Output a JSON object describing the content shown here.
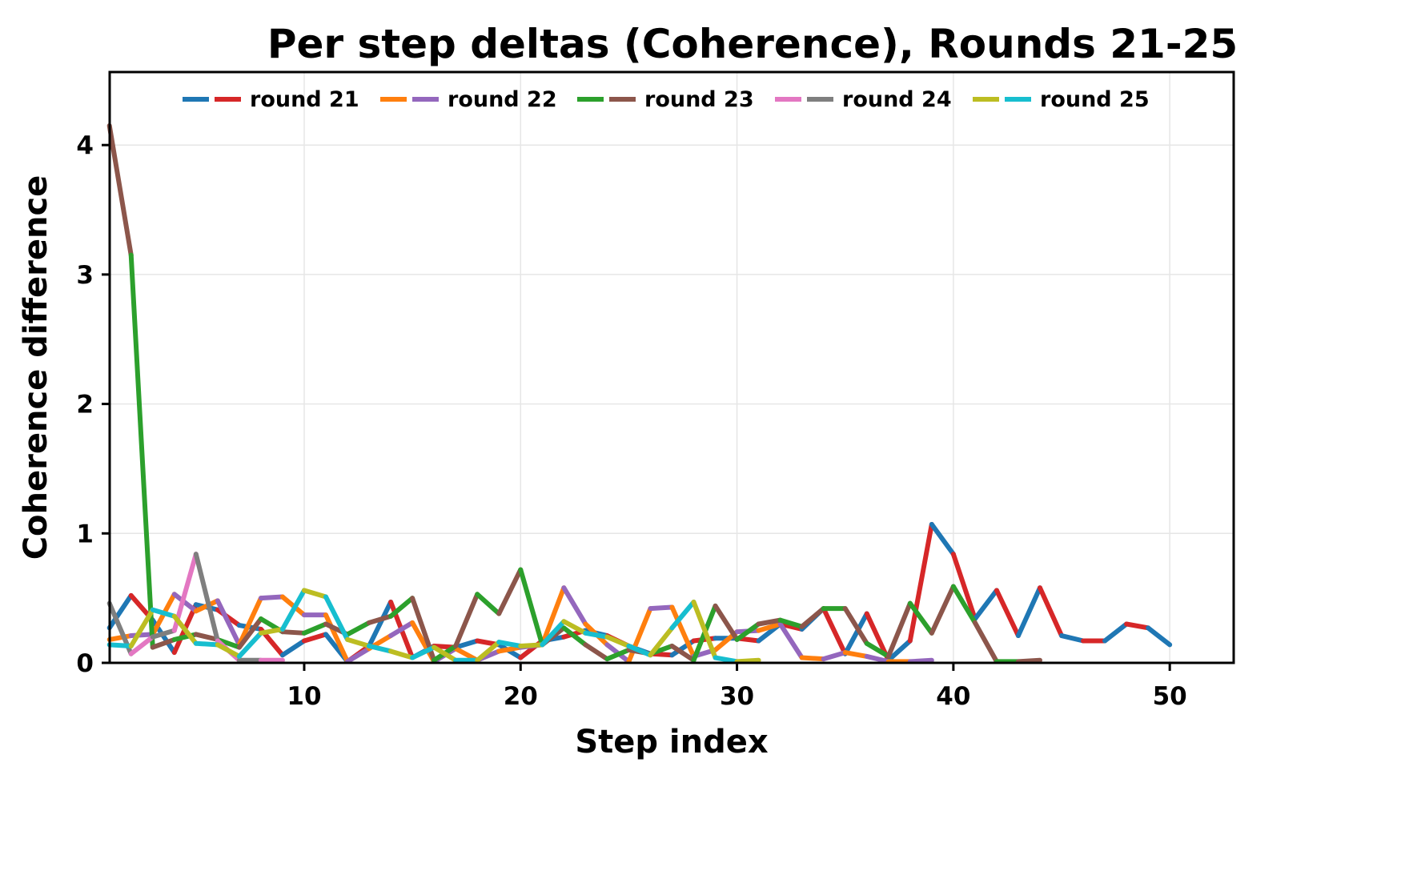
{
  "chart_data": {
    "type": "line",
    "title": "Per step deltas (Coherence), Rounds 21-25",
    "xlabel": "Step index",
    "ylabel": "Coherence difference",
    "xlim": [
      1,
      53
    ],
    "ylim": [
      0,
      4.55
    ],
    "xticks": [
      10,
      20,
      30,
      40,
      50
    ],
    "yticks": [
      0,
      1,
      2,
      3,
      4
    ],
    "grid": true,
    "legend_position": "upper center (horizontal, inside plot)",
    "line_style_note": "Each series is drawn with two alternating segment colors",
    "series": [
      {
        "name": "round 21",
        "colors": [
          "#1f77b4",
          "#d62728"
        ],
        "x": [
          1,
          2,
          3,
          4,
          5,
          6,
          7,
          8,
          9,
          10,
          11,
          12,
          13,
          14,
          15,
          16,
          17,
          18,
          19,
          20,
          21,
          22,
          23,
          24,
          25,
          26,
          27,
          28,
          29,
          30,
          31,
          32,
          33,
          34,
          35,
          36,
          37,
          38,
          39,
          40,
          41,
          42,
          43,
          44,
          45,
          46,
          47,
          48,
          49,
          50
        ],
        "values": [
          0.27,
          0.52,
          0.33,
          0.08,
          0.45,
          0.41,
          0.29,
          0.26,
          0.06,
          0.17,
          0.22,
          0.01,
          0.13,
          0.47,
          0.04,
          0.13,
          0.12,
          0.17,
          0.14,
          0.04,
          0.17,
          0.2,
          0.25,
          0.21,
          0.13,
          0.07,
          0.06,
          0.17,
          0.19,
          0.19,
          0.17,
          0.3,
          0.26,
          0.42,
          0.07,
          0.38,
          0.02,
          0.17,
          1.07,
          0.84,
          0.34,
          0.56,
          0.21,
          0.58,
          0.21,
          0.17,
          0.17,
          0.3,
          0.27,
          0.14
        ]
      },
      {
        "name": "round 22",
        "colors": [
          "#ff7f0e",
          "#9467bd"
        ],
        "x": [
          1,
          2,
          3,
          4,
          5,
          6,
          7,
          8,
          9,
          10,
          11,
          12,
          13,
          14,
          15,
          16,
          17,
          18,
          19,
          20,
          21,
          22,
          23,
          24,
          25,
          26,
          27,
          28,
          29,
          30,
          31,
          32,
          33,
          34,
          35,
          36,
          37,
          38,
          39
        ],
        "values": [
          0.18,
          0.21,
          0.22,
          0.53,
          0.4,
          0.48,
          0.14,
          0.5,
          0.51,
          0.37,
          0.37,
          0.01,
          0.11,
          0.21,
          0.31,
          0.01,
          0.11,
          0.02,
          0.09,
          0.12,
          0.14,
          0.58,
          0.3,
          0.14,
          0.01,
          0.42,
          0.43,
          0.05,
          0.1,
          0.24,
          0.25,
          0.3,
          0.04,
          0.03,
          0.08,
          0.05,
          0.01,
          0.01,
          0.02
        ]
      },
      {
        "name": "round 23",
        "colors": [
          "#8c564b",
          "#2ca02c"
        ],
        "x": [
          1,
          2,
          3,
          4,
          5,
          6,
          7,
          8,
          9,
          10,
          11,
          12,
          13,
          14,
          15,
          16,
          17,
          18,
          19,
          20,
          21,
          22,
          23,
          24,
          25,
          26,
          27,
          28,
          29,
          30,
          31,
          32,
          33,
          34,
          35,
          36,
          37,
          38,
          39,
          40,
          41,
          42,
          43,
          44
        ],
        "values": [
          4.15,
          3.15,
          0.12,
          0.18,
          0.22,
          0.18,
          0.12,
          0.34,
          0.24,
          0.23,
          0.3,
          0.22,
          0.31,
          0.36,
          0.5,
          0.02,
          0.13,
          0.53,
          0.38,
          0.72,
          0.14,
          0.27,
          0.14,
          0.03,
          0.1,
          0.07,
          0.13,
          0.02,
          0.44,
          0.18,
          0.3,
          0.33,
          0.28,
          0.42,
          0.42,
          0.15,
          0.05,
          0.46,
          0.23,
          0.59,
          0.31,
          0.01,
          0.01,
          0.02
        ]
      },
      {
        "name": "round 24",
        "colors": [
          "#7f7f7f",
          "#e377c2"
        ],
        "x": [
          1,
          2,
          3,
          4,
          5,
          6,
          7,
          8,
          9
        ],
        "values": [
          0.46,
          0.07,
          0.2,
          0.25,
          0.84,
          0.17,
          0.02,
          0.02,
          0.02
        ]
      },
      {
        "name": "round 25",
        "colors": [
          "#17becf",
          "#bcbd22"
        ],
        "x": [
          1,
          2,
          3,
          4,
          5,
          6,
          7,
          8,
          9,
          10,
          11,
          12,
          13,
          14,
          15,
          16,
          17,
          18,
          19,
          20,
          21,
          22,
          23,
          24,
          25,
          26,
          27,
          28,
          29,
          30,
          31
        ],
        "values": [
          0.14,
          0.13,
          0.41,
          0.36,
          0.15,
          0.14,
          0.05,
          0.23,
          0.26,
          0.56,
          0.51,
          0.18,
          0.13,
          0.09,
          0.04,
          0.12,
          0.02,
          0.02,
          0.16,
          0.13,
          0.14,
          0.32,
          0.23,
          0.2,
          0.13,
          0.06,
          0.27,
          0.47,
          0.04,
          0.01,
          0.02
        ]
      }
    ]
  },
  "legend": {
    "items": [
      {
        "label": "round 21",
        "colors": [
          "#1f77b4",
          "#d62728"
        ]
      },
      {
        "label": "round 22",
        "colors": [
          "#ff7f0e",
          "#9467bd"
        ]
      },
      {
        "label": "round 23",
        "colors": [
          "#2ca02c",
          "#8c564b"
        ]
      },
      {
        "label": "round 24",
        "colors": [
          "#e377c2",
          "#7f7f7f"
        ]
      },
      {
        "label": "round 25",
        "colors": [
          "#bcbd22",
          "#17becf"
        ]
      }
    ]
  }
}
